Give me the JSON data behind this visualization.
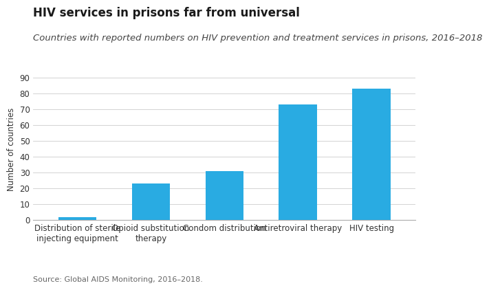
{
  "title": "HIV services in prisons far from universal",
  "subtitle": "Countries with reported numbers on HIV prevention and treatment services in prisons, 2016–2018",
  "source": "Source: Global AIDS Monitoring, 2016–2018.",
  "categories": [
    "Distribution of sterile\ninjecting equipment",
    "Opioid substitution\ntherapy",
    "Condom distribution",
    "Antiretroviral therapy",
    "HIV testing"
  ],
  "values": [
    2,
    23,
    31,
    73,
    83
  ],
  "bar_color": "#29ABE2",
  "ylabel": "Number of countries",
  "ylim": [
    0,
    90
  ],
  "yticks": [
    0,
    10,
    20,
    30,
    40,
    50,
    60,
    70,
    80,
    90
  ],
  "background_color": "#ffffff",
  "title_fontsize": 12,
  "subtitle_fontsize": 9.5,
  "source_fontsize": 8,
  "ylabel_fontsize": 8.5,
  "tick_fontsize": 8.5,
  "bar_width": 0.52
}
